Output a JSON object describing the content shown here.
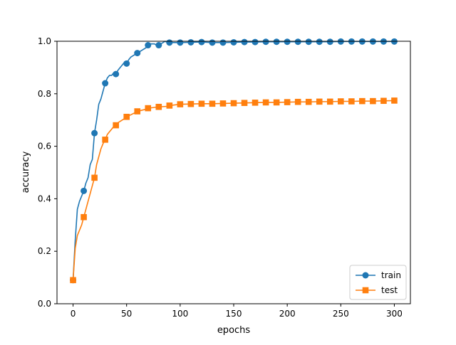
{
  "chart_data": {
    "type": "line",
    "title": "",
    "xlabel": "epochs",
    "ylabel": "accuracy",
    "xlim": [
      -15,
      315
    ],
    "ylim": [
      0.0,
      1.0
    ],
    "xticks": [
      0,
      50,
      100,
      150,
      200,
      250,
      300
    ],
    "xtick_labels": [
      "0",
      "50",
      "100",
      "150",
      "200",
      "250",
      "300"
    ],
    "yticks": [
      0.0,
      0.2,
      0.4,
      0.6,
      0.8,
      1.0
    ],
    "ytick_labels": [
      "0.0",
      "0.2",
      "0.4",
      "0.6",
      "0.8",
      "1.0"
    ],
    "grid": false,
    "legend_position": "lower-right",
    "series": [
      {
        "name": "train",
        "color": "#1f77b4",
        "marker": "circle",
        "x": [
          0,
          2,
          4,
          6,
          8,
          10,
          12,
          14,
          16,
          18,
          20,
          22,
          24,
          26,
          28,
          30,
          32,
          34,
          36,
          38,
          40,
          42,
          44,
          46,
          48,
          50,
          52,
          54,
          56,
          58,
          60,
          62,
          64,
          66,
          68,
          70,
          72,
          74,
          76,
          78,
          80,
          82,
          84,
          86,
          88,
          90,
          100,
          110,
          120,
          130,
          140,
          150,
          160,
          170,
          180,
          190,
          200,
          210,
          220,
          230,
          240,
          250,
          260,
          270,
          280,
          290,
          300
        ],
        "y": [
          0.09,
          0.24,
          0.36,
          0.39,
          0.41,
          0.43,
          0.46,
          0.48,
          0.53,
          0.55,
          0.65,
          0.7,
          0.76,
          0.78,
          0.81,
          0.84,
          0.86,
          0.87,
          0.87,
          0.88,
          0.875,
          0.89,
          0.9,
          0.91,
          0.92,
          0.915,
          0.93,
          0.94,
          0.945,
          0.95,
          0.955,
          0.96,
          0.965,
          0.97,
          0.975,
          0.985,
          0.99,
          0.99,
          0.99,
          0.985,
          0.985,
          0.99,
          0.995,
          1.0,
          0.995,
          0.995,
          0.995,
          0.996,
          0.997,
          0.995,
          0.995,
          0.996,
          0.997,
          0.997,
          0.998,
          0.998,
          0.998,
          0.998,
          0.998,
          0.998,
          0.998,
          0.999,
          0.999,
          0.999,
          0.999,
          0.999,
          0.999
        ],
        "marker_every": 5
      },
      {
        "name": "test",
        "color": "#ff7f0e",
        "marker": "square",
        "x": [
          0,
          2,
          4,
          6,
          8,
          10,
          12,
          14,
          16,
          18,
          20,
          22,
          24,
          26,
          28,
          30,
          32,
          34,
          36,
          38,
          40,
          42,
          44,
          46,
          48,
          50,
          52,
          54,
          56,
          58,
          60,
          64,
          68,
          70,
          74,
          78,
          80,
          84,
          88,
          90,
          100,
          110,
          120,
          130,
          140,
          150,
          160,
          170,
          180,
          190,
          200,
          210,
          220,
          230,
          240,
          250,
          260,
          270,
          280,
          290,
          300
        ],
        "y": [
          0.09,
          0.21,
          0.26,
          0.28,
          0.3,
          0.33,
          0.36,
          0.39,
          0.42,
          0.45,
          0.48,
          0.53,
          0.56,
          0.59,
          0.61,
          0.625,
          0.645,
          0.655,
          0.665,
          0.675,
          0.68,
          0.69,
          0.695,
          0.7,
          0.705,
          0.712,
          0.716,
          0.72,
          0.724,
          0.728,
          0.733,
          0.737,
          0.741,
          0.745,
          0.747,
          0.749,
          0.75,
          0.751,
          0.752,
          0.755,
          0.76,
          0.761,
          0.762,
          0.762,
          0.763,
          0.764,
          0.765,
          0.766,
          0.767,
          0.767,
          0.768,
          0.769,
          0.769,
          0.77,
          0.77,
          0.771,
          0.771,
          0.772,
          0.772,
          0.773,
          0.774
        ],
        "marker_x": [
          0,
          10,
          20,
          30,
          40,
          50,
          60,
          70,
          80,
          90,
          100,
          110,
          120,
          130,
          140,
          150,
          160,
          170,
          180,
          190,
          200,
          210,
          220,
          230,
          240,
          250,
          260,
          270,
          280,
          290,
          300
        ]
      }
    ]
  }
}
